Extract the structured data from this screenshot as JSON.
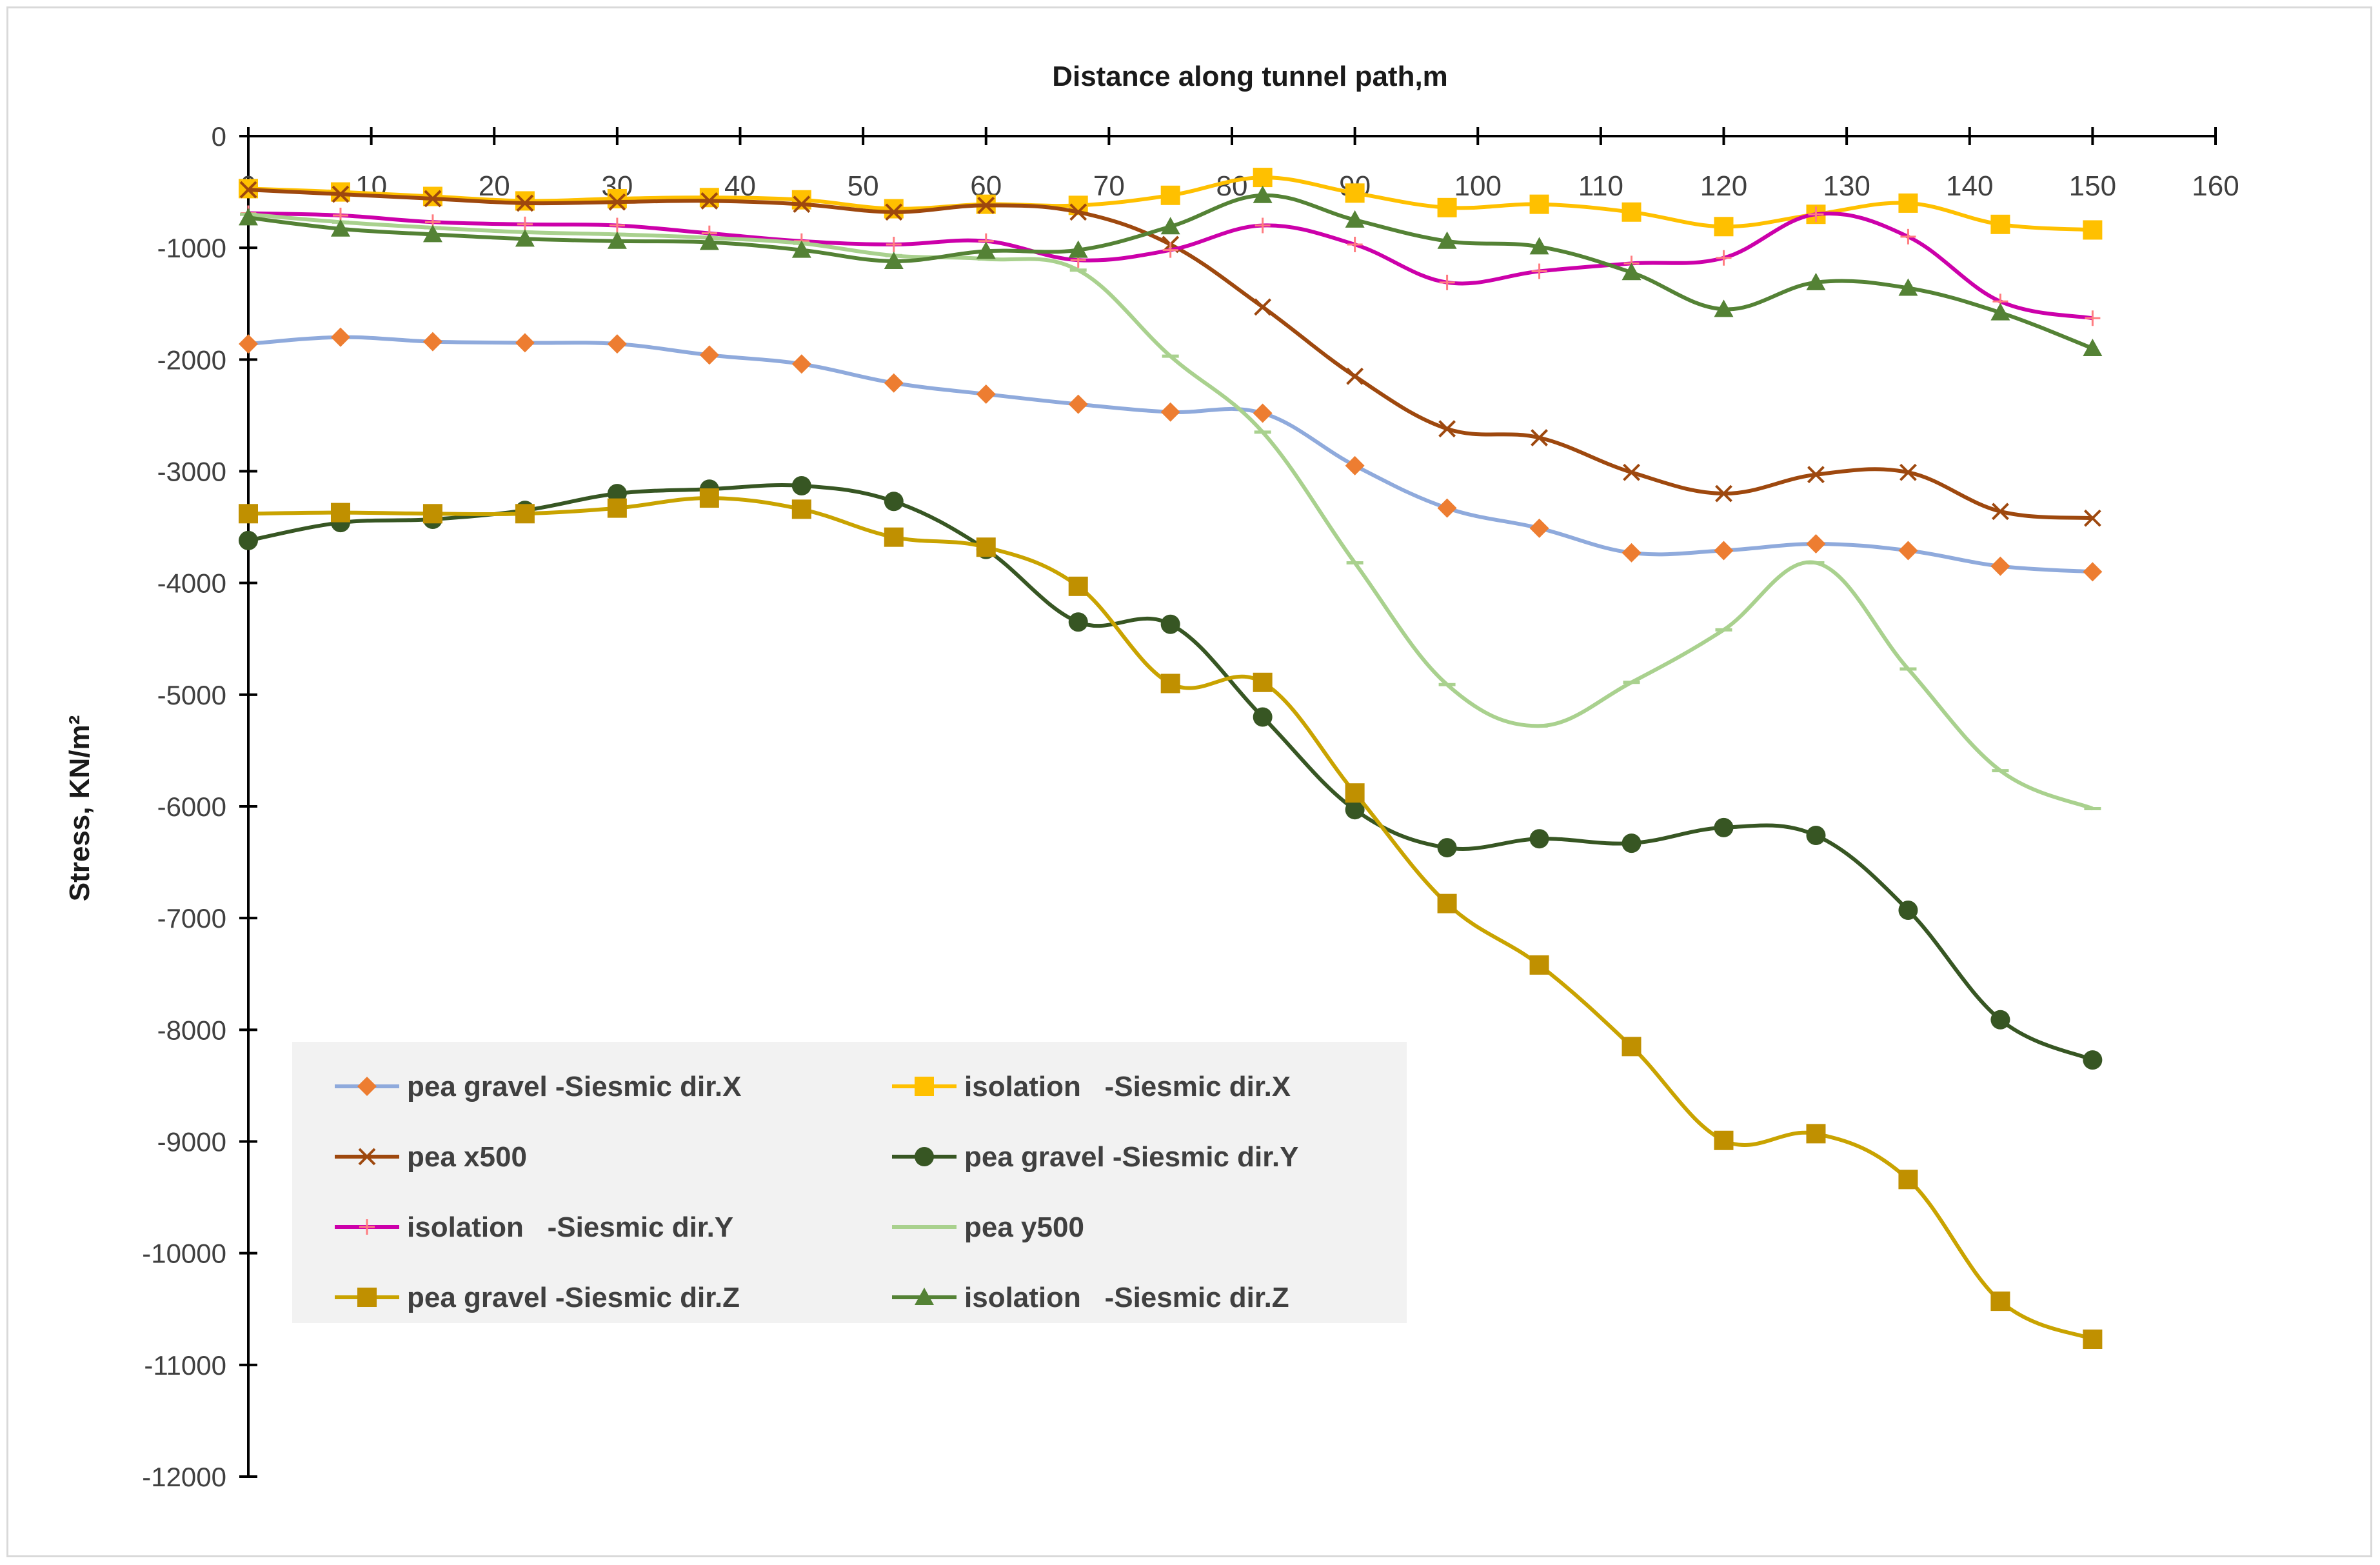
{
  "chart_data": {
    "type": "line",
    "title": "Distance along tunnel path,m",
    "xlabel": "Distance along tunnel path,m",
    "ylabel": "Stress, KN/m²",
    "xlim": [
      0,
      160
    ],
    "ylim": [
      -12000,
      0
    ],
    "x_ticks": [
      0,
      10,
      20,
      30,
      40,
      50,
      60,
      70,
      80,
      90,
      100,
      110,
      120,
      130,
      140,
      150,
      160
    ],
    "y_ticks": [
      0,
      -1000,
      -2000,
      -3000,
      -4000,
      -5000,
      -6000,
      -7000,
      -8000,
      -9000,
      -10000,
      -11000,
      -12000
    ],
    "x_axis_position": "top",
    "legend_position": "bottom-left",
    "grid": false,
    "x": [
      0,
      7.5,
      15,
      22.5,
      30,
      37.5,
      45,
      52.5,
      60,
      67.5,
      75,
      82.5,
      90,
      97.5,
      105,
      112.5,
      120,
      127.5,
      135,
      142.5,
      150
    ],
    "series": [
      {
        "name": "pea gravel -Siesmic dir.X",
        "color": "#8faadc",
        "marker_color": "#ed7d31",
        "marker": "diamond",
        "values": [
          -1860,
          -1800,
          -1840,
          -1850,
          -1860,
          -1960,
          -2040,
          -2210,
          -2310,
          -2400,
          -2470,
          -2480,
          -2950,
          -3330,
          -3510,
          -3730,
          -3710,
          -3650,
          -3710,
          -3850,
          -3900
        ]
      },
      {
        "name": "isolation   -Siesmic dir.X",
        "color": "#ffc000",
        "marker_color": "#ffc000",
        "marker": "square",
        "values": [
          -470,
          -500,
          -540,
          -580,
          -560,
          -550,
          -570,
          -650,
          -610,
          -620,
          -530,
          -370,
          -510,
          -640,
          -610,
          -680,
          -810,
          -700,
          -600,
          -790,
          -840
        ]
      },
      {
        "name": "pea x500",
        "color": "#9e480e",
        "marker_color": "#9e480e",
        "marker": "x",
        "values": [
          -480,
          -520,
          -560,
          -600,
          -590,
          -580,
          -610,
          -680,
          -620,
          -680,
          -970,
          -1530,
          -2150,
          -2620,
          -2700,
          -3010,
          -3200,
          -3030,
          -3010,
          -3360,
          -3420
        ]
      },
      {
        "name": "pea gravel -Siesmic dir.Y",
        "color": "#375623",
        "marker_color": "#375623",
        "marker": "circle",
        "values": [
          -3620,
          -3460,
          -3430,
          -3350,
          -3200,
          -3160,
          -3130,
          -3270,
          -3700,
          -4350,
          -4370,
          -5200,
          -6030,
          -6370,
          -6290,
          -6330,
          -6190,
          -6260,
          -6930,
          -7910,
          -8270
        ]
      },
      {
        "name": "isolation   -Siesmic dir.Y",
        "color": "#cc00aa",
        "marker_color": "#ff7c80",
        "marker": "plus",
        "values": [
          -690,
          -710,
          -770,
          -790,
          -800,
          -870,
          -940,
          -970,
          -940,
          -1110,
          -1020,
          -800,
          -970,
          -1310,
          -1210,
          -1140,
          -1090,
          -700,
          -900,
          -1480,
          -1630
        ]
      },
      {
        "name": "pea y500",
        "color": "#a9d18e",
        "marker_color": "#a9d18e",
        "marker": "dash",
        "values": [
          -700,
          -770,
          -820,
          -860,
          -880,
          -910,
          -960,
          -1070,
          -1100,
          -1200,
          -1970,
          -2650,
          -3820,
          -4910,
          -5280,
          -4890,
          -4420,
          -3820,
          -4770,
          -5680,
          -6020
        ]
      },
      {
        "name": "pea gravel -Siesmic dir.Z",
        "color": "#c9a300",
        "marker_color": "#c09000",
        "marker": "square",
        "values": [
          -3380,
          -3370,
          -3380,
          -3380,
          -3330,
          -3240,
          -3340,
          -3590,
          -3680,
          -4030,
          -4900,
          -4890,
          -5880,
          -6870,
          -7420,
          -8150,
          -8990,
          -8930,
          -9340,
          -10430,
          -10770
        ]
      },
      {
        "name": "isolation   -Siesmic dir.Z",
        "color": "#548235",
        "marker_color": "#548235",
        "marker": "triangle",
        "values": [
          -730,
          -830,
          -880,
          -920,
          -940,
          -950,
          -1020,
          -1120,
          -1030,
          -1020,
          -810,
          -530,
          -750,
          -940,
          -990,
          -1220,
          -1550,
          -1310,
          -1360,
          -1580,
          -1900
        ]
      }
    ]
  }
}
